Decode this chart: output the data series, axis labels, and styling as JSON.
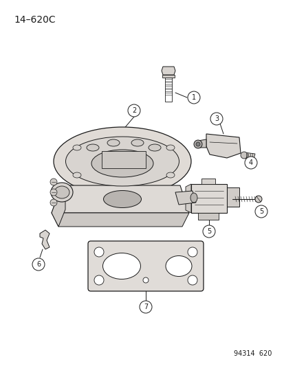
{
  "title": "14–620C",
  "footer": "94314  620",
  "bg_color": "#ffffff",
  "line_color": "#1a1a1a",
  "part_fill": "#e8e4e0",
  "part_fill2": "#d0ccc8",
  "part_fill3": "#c0bcb8"
}
